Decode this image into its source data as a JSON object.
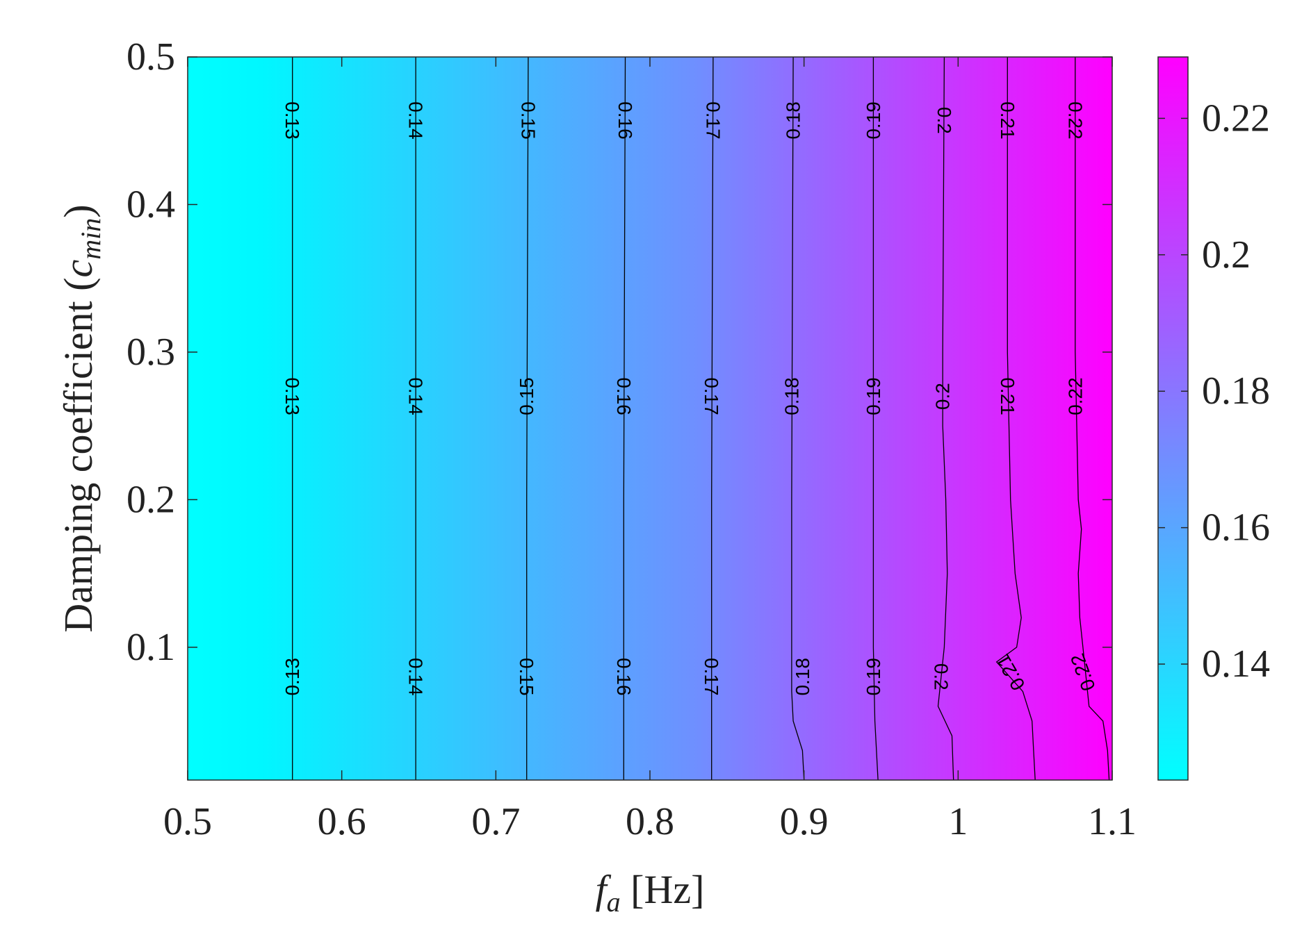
{
  "chart_data": {
    "type": "heatmap",
    "subtype": "filled-contour",
    "title": "",
    "xlabel": "f_a [Hz]",
    "xlabel_parts": {
      "symbol": "f",
      "subscript": "a",
      "unit": "[Hz]"
    },
    "ylabel": "Damping coefficient (c_min)",
    "ylabel_parts": {
      "text": "Damping coefficient (",
      "symbol": "c",
      "subscript": "min",
      "close": ")"
    },
    "xlim": [
      0.5,
      1.1
    ],
    "ylim": [
      0.01,
      0.5
    ],
    "x_ticks": [
      0.5,
      0.6,
      0.7,
      0.8,
      0.9,
      1.0,
      1.1
    ],
    "x_tick_labels": [
      "0.5",
      "0.6",
      "0.7",
      "0.8",
      "0.9",
      "1",
      "1.1"
    ],
    "y_ticks": [
      0.1,
      0.2,
      0.3,
      0.4,
      0.5
    ],
    "y_tick_labels": [
      "0.1",
      "0.2",
      "0.3",
      "0.4",
      "0.5"
    ],
    "colorbar": {
      "range": [
        0.123,
        0.229
      ],
      "ticks": [
        0.14,
        0.16,
        0.18,
        0.2,
        0.22
      ],
      "tick_labels": [
        "0.14",
        "0.16",
        "0.18",
        "0.2",
        "0.22"
      ],
      "colormap": "cool",
      "color_low": "#00ffff",
      "color_high": "#ff00ff"
    },
    "grid": false,
    "contours": [
      {
        "level": 0.13,
        "label": "0.13",
        "points": [
          [
            0.568,
            0.01
          ],
          [
            0.568,
            0.2
          ],
          [
            0.568,
            0.5
          ]
        ]
      },
      {
        "level": 0.14,
        "label": "0.14",
        "points": [
          [
            0.648,
            0.01
          ],
          [
            0.648,
            0.2
          ],
          [
            0.648,
            0.5
          ]
        ]
      },
      {
        "level": 0.15,
        "label": "0.15",
        "points": [
          [
            0.72,
            0.01
          ],
          [
            0.72,
            0.2
          ],
          [
            0.721,
            0.5
          ]
        ]
      },
      {
        "level": 0.16,
        "label": "0.16",
        "points": [
          [
            0.783,
            0.01
          ],
          [
            0.783,
            0.2
          ],
          [
            0.784,
            0.5
          ]
        ]
      },
      {
        "level": 0.17,
        "label": "0.17",
        "points": [
          [
            0.84,
            0.01
          ],
          [
            0.84,
            0.2
          ],
          [
            0.841,
            0.5
          ]
        ]
      },
      {
        "level": 0.18,
        "label": "0.18",
        "points": [
          [
            0.9,
            0.01
          ],
          [
            0.899,
            0.03
          ],
          [
            0.893,
            0.05
          ],
          [
            0.892,
            0.07
          ],
          [
            0.892,
            0.2
          ],
          [
            0.893,
            0.5
          ]
        ]
      },
      {
        "level": 0.19,
        "label": "0.19",
        "points": [
          [
            0.948,
            0.01
          ],
          [
            0.946,
            0.05
          ],
          [
            0.945,
            0.1
          ],
          [
            0.945,
            0.3
          ],
          [
            0.945,
            0.5
          ]
        ]
      },
      {
        "level": 0.2,
        "label": "0.2",
        "points": [
          [
            0.997,
            0.01
          ],
          [
            0.996,
            0.04
          ],
          [
            0.987,
            0.06
          ],
          [
            0.991,
            0.1
          ],
          [
            0.993,
            0.15
          ],
          [
            0.992,
            0.2
          ],
          [
            0.99,
            0.25
          ],
          [
            0.99,
            0.3
          ],
          [
            0.991,
            0.5
          ]
        ]
      },
      {
        "level": 0.21,
        "label": "0.21",
        "points": [
          [
            1.05,
            0.01
          ],
          [
            1.049,
            0.03
          ],
          [
            1.048,
            0.05
          ],
          [
            1.042,
            0.07
          ],
          [
            1.025,
            0.09
          ],
          [
            1.038,
            0.1
          ],
          [
            1.041,
            0.12
          ],
          [
            1.037,
            0.15
          ],
          [
            1.034,
            0.2
          ],
          [
            1.033,
            0.25
          ],
          [
            1.032,
            0.3
          ],
          [
            1.032,
            0.5
          ]
        ]
      },
      {
        "level": 0.22,
        "label": "0.22",
        "points": [
          [
            1.098,
            0.01
          ],
          [
            1.097,
            0.03
          ],
          [
            1.094,
            0.05
          ],
          [
            1.085,
            0.06
          ],
          [
            1.081,
            0.1
          ],
          [
            1.079,
            0.12
          ],
          [
            1.078,
            0.15
          ],
          [
            1.08,
            0.18
          ],
          [
            1.078,
            0.2
          ],
          [
            1.077,
            0.25
          ],
          [
            1.076,
            0.3
          ],
          [
            1.076,
            0.5
          ]
        ]
      }
    ],
    "contour_labels": [
      {
        "text": "0.13",
        "x": 0.568,
        "y": 0.457,
        "upside_down": false
      },
      {
        "text": "0.14",
        "x": 0.648,
        "y": 0.457,
        "upside_down": false
      },
      {
        "text": "0.15",
        "x": 0.721,
        "y": 0.457,
        "upside_down": false
      },
      {
        "text": "0.16",
        "x": 0.784,
        "y": 0.457,
        "upside_down": false
      },
      {
        "text": "0.17",
        "x": 0.841,
        "y": 0.457,
        "upside_down": false
      },
      {
        "text": "0.18",
        "x": 0.893,
        "y": 0.457,
        "upside_down": true
      },
      {
        "text": "0.19",
        "x": 0.945,
        "y": 0.457,
        "upside_down": true
      },
      {
        "text": "0.2",
        "x": 0.991,
        "y": 0.457,
        "upside_down": false
      },
      {
        "text": "0.21",
        "x": 1.032,
        "y": 0.457,
        "upside_down": false
      },
      {
        "text": "0.22",
        "x": 1.076,
        "y": 0.457,
        "upside_down": false
      },
      {
        "text": "0.13",
        "x": 0.568,
        "y": 0.27,
        "upside_down": false
      },
      {
        "text": "0.14",
        "x": 0.648,
        "y": 0.27,
        "upside_down": false
      },
      {
        "text": "0.15",
        "x": 0.72,
        "y": 0.27,
        "upside_down": true
      },
      {
        "text": "0.16",
        "x": 0.783,
        "y": 0.27,
        "upside_down": false
      },
      {
        "text": "0.17",
        "x": 0.84,
        "y": 0.27,
        "upside_down": false
      },
      {
        "text": "0.18",
        "x": 0.892,
        "y": 0.27,
        "upside_down": true
      },
      {
        "text": "0.19",
        "x": 0.945,
        "y": 0.27,
        "upside_down": true
      },
      {
        "text": "0.2",
        "x": 0.99,
        "y": 0.27,
        "upside_down": true
      },
      {
        "text": "0.21",
        "x": 1.032,
        "y": 0.27,
        "upside_down": false
      },
      {
        "text": "0.22",
        "x": 1.076,
        "y": 0.27,
        "upside_down": true
      },
      {
        "text": "0.13",
        "x": 0.568,
        "y": 0.08,
        "upside_down": true
      },
      {
        "text": "0.14",
        "x": 0.648,
        "y": 0.08,
        "upside_down": false
      },
      {
        "text": "0.15",
        "x": 0.72,
        "y": 0.08,
        "upside_down": false
      },
      {
        "text": "0.16",
        "x": 0.783,
        "y": 0.08,
        "upside_down": false
      },
      {
        "text": "0.17",
        "x": 0.84,
        "y": 0.08,
        "upside_down": false
      },
      {
        "text": "0.18",
        "x": 0.899,
        "y": 0.08,
        "upside_down": true
      },
      {
        "text": "0.19",
        "x": 0.945,
        "y": 0.08,
        "upside_down": true
      },
      {
        "text": "0.2",
        "x": 0.989,
        "y": 0.08,
        "upside_down": false
      },
      {
        "text": "0.21",
        "x": 1.034,
        "y": 0.083,
        "upside_down": true,
        "tilt": 30
      },
      {
        "text": "0.22",
        "x": 1.081,
        "y": 0.083,
        "upside_down": true,
        "tilt": 20
      }
    ]
  }
}
